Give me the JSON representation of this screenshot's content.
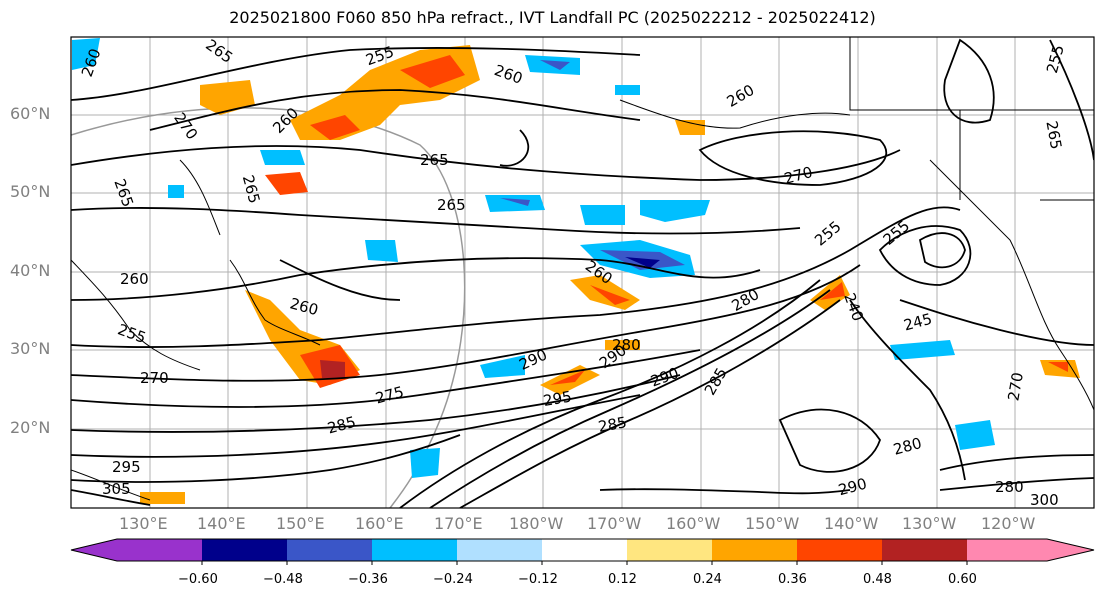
{
  "title": "2025021800 F060 850 hPa refract., IVT Landfall PC (2025022212 - 2025022412)",
  "lat_labels": [
    "60°N",
    "50°N",
    "40°N",
    "30°N",
    "20°N"
  ],
  "lon_labels": [
    "130°E",
    "140°E",
    "150°E",
    "160°E",
    "170°E",
    "180°W",
    "170°W",
    "160°W",
    "150°W",
    "140°W",
    "130°W",
    "120°W"
  ],
  "colorbar": {
    "ticks": [
      "−0.60",
      "−0.48",
      "−0.36",
      "−0.24",
      "−0.12",
      "0.12",
      "0.24",
      "0.36",
      "0.48",
      "0.60"
    ],
    "colors": [
      "#9932cc",
      "#00008b",
      "#3a56c8",
      "#00bfff",
      "#b0e0ff",
      "#ffffff",
      "#ffe680",
      "#ffa500",
      "#ff4500",
      "#b22222",
      "#ff88b0"
    ]
  },
  "contour_labels": [
    "265",
    "255",
    "260",
    "270",
    "265",
    "260",
    "260",
    "265",
    "270",
    "265",
    "260",
    "260",
    "255",
    "255",
    "265",
    "260",
    "280",
    "260",
    "255",
    "280",
    "240",
    "245",
    "270",
    "275",
    "290",
    "290",
    "285",
    "295",
    "285",
    "280",
    "290",
    "280",
    "290",
    "285",
    "300",
    "305",
    "295",
    "270",
    "265",
    "255"
  ],
  "colors": {
    "contour": "#000000",
    "coast": "#000000",
    "grid": "#b0b0b0"
  }
}
